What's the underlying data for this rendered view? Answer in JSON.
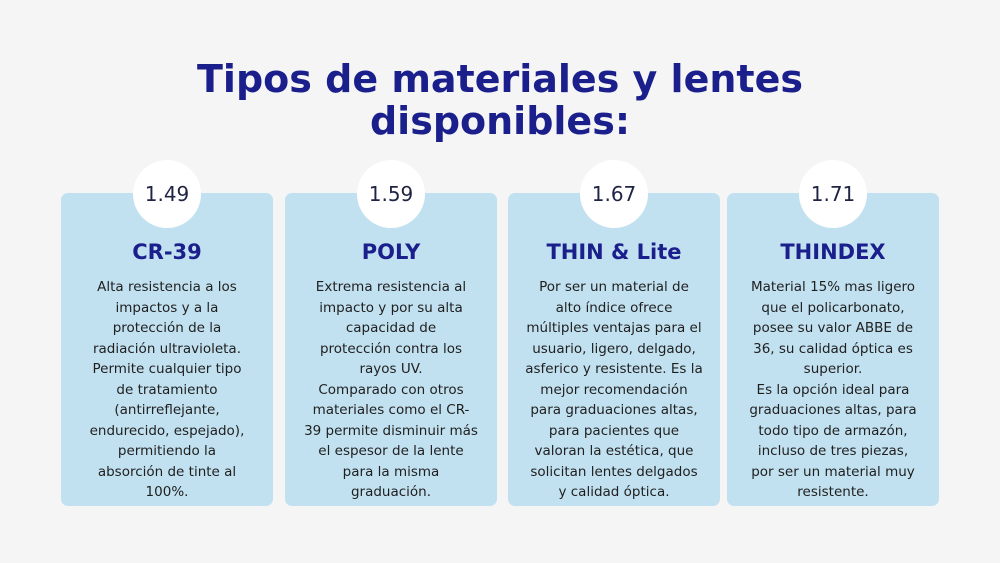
{
  "title_line1": "Tipos de materiales y lentes",
  "title_line2": "disponibles:",
  "cards": [
    {
      "index": "1.49",
      "name": "CR-39",
      "lines": [
        "Alta resistencia a los",
        "impactos y a la",
        "protección de la",
        "radiación ultravioleta.",
        "Permite cualquier tipo",
        "de tratamiento",
        "(antirreflejante,",
        "endurecido, espejado),",
        "permitiendo la",
        "absorción de tinte al",
        "100%."
      ]
    },
    {
      "index": "1.59",
      "name": "POLY",
      "lines": [
        "Extrema resistencia al",
        "impacto y por su alta",
        "capacidad de",
        "protección contra los",
        "rayos UV.",
        "Comparado con otros",
        "materiales como el CR-",
        "39 permite disminuir más",
        "el espesor de la lente",
        "para la misma",
        "graduación."
      ]
    },
    {
      "index": "1.67",
      "name": "THIN & Lite",
      "lines": [
        "Por ser un material de",
        "alto índice ofrece",
        "múltiples ventajas para el",
        "usuario, ligero, delgado,",
        "asferico y resistente. Es la",
        "mejor recomendación",
        "para graduaciones altas,",
        "para pacientes que",
        "valoran la estética, que",
        "solicitan lentes delgados",
        "y calidad óptica."
      ]
    },
    {
      "index": "1.71",
      "name": "THINDEX",
      "lines": [
        "Material 15% mas ligero",
        "que el policarbonato,",
        "posee su valor ABBE de",
        "36, su calidad óptica es",
        "superior.",
        "Es la opción ideal para",
        "graduaciones altas, para",
        "todo tipo de armazón,",
        "incluso de tres piezas,",
        "por ser un material muy",
        "resistente."
      ]
    }
  ]
}
